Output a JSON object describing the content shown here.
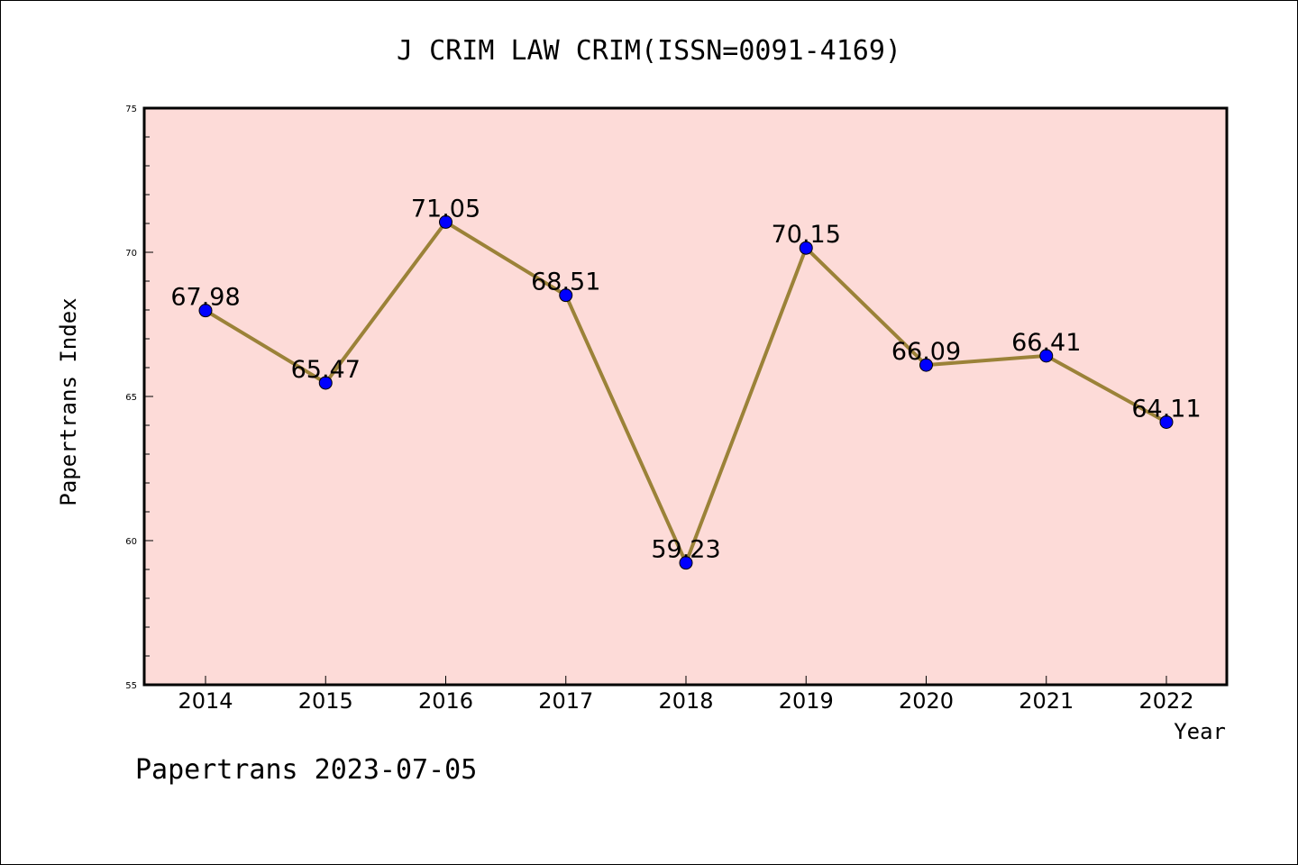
{
  "chart_data": {
    "type": "line",
    "title": "J CRIM LAW CRIM(ISSN=0091-4169)",
    "xlabel": "Year",
    "ylabel": "Papertrans Index",
    "x": [
      "2014",
      "2015",
      "2016",
      "2017",
      "2018",
      "2019",
      "2020",
      "2021",
      "2022"
    ],
    "series": [
      {
        "values": [
          67.98,
          65.47,
          71.05,
          68.51,
          59.23,
          70.15,
          66.09,
          66.41,
          64.11
        ]
      }
    ],
    "data_labels": [
      "67.98",
      "65.47",
      "71.05",
      "68.51",
      "59.23",
      "70.15",
      "66.09",
      "66.41",
      "64.11"
    ],
    "ylim": [
      55,
      75
    ],
    "yticks": [
      55,
      60,
      65,
      70,
      75
    ],
    "grid": false,
    "colors": {
      "plot_background": "#fddbd8",
      "line": "#9b8238",
      "marker": "#0000ff"
    }
  },
  "footer": {
    "text": "Papertrans 2023-07-05"
  }
}
